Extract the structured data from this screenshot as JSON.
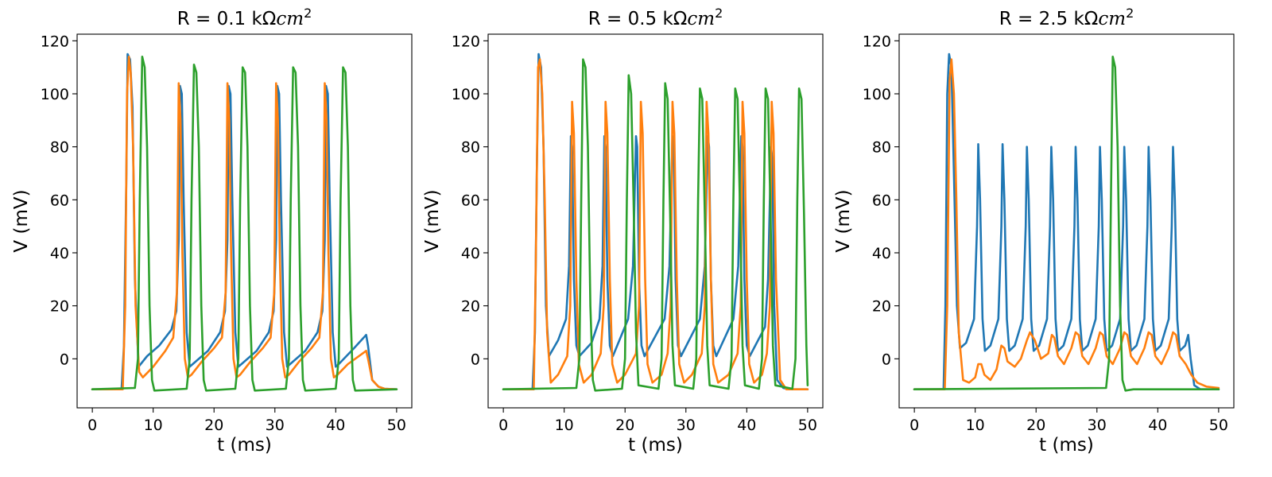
{
  "colors": {
    "blue": "#1f77b4",
    "orange": "#ff7f0e",
    "green": "#2ca02c"
  },
  "chart_data": [
    {
      "type": "line",
      "title_main": "R = 0.1 kΩ",
      "title_unit": "cm",
      "title_exp": "2",
      "xlabel": "t (ms)",
      "ylabel": "V (mV)",
      "xlim": [
        -2.5,
        52.5
      ],
      "ylim": [
        -18.5,
        122.5
      ],
      "xticks": [
        "0",
        "10",
        "20",
        "30",
        "40",
        "50"
      ],
      "yticks": [
        "0",
        "20",
        "40",
        "60",
        "80",
        "100",
        "120"
      ],
      "series": [
        {
          "name": "blue",
          "color": "#1f77b4",
          "x": [
            0,
            4.8,
            5.2,
            5.6,
            5.8,
            6.2,
            6.6,
            7.0,
            7.6,
            9,
            11,
            13,
            13.8,
            14.2,
            14.4,
            14.7,
            15.0,
            15.5,
            16.0,
            16.5,
            19,
            21,
            21.8,
            22.2,
            22.4,
            22.7,
            23.0,
            23.5,
            24.0,
            24.5,
            27,
            29,
            29.8,
            30.2,
            30.4,
            30.7,
            31.0,
            31.5,
            32.0,
            32.5,
            35,
            37,
            37.8,
            38.2,
            38.4,
            38.7,
            39.0,
            39.5,
            40.0,
            40.5,
            43,
            45.0,
            45.3,
            46,
            47,
            48,
            50
          ],
          "y": [
            -11.5,
            -11.5,
            5,
            70,
            115,
            113,
            95,
            30,
            -3,
            1,
            5,
            11,
            18,
            45,
            103,
            100,
            60,
            10,
            -3,
            -2,
            3,
            10,
            18,
            45,
            103,
            100,
            60,
            10,
            -3,
            -2,
            3,
            10,
            18,
            45,
            103,
            100,
            60,
            10,
            -3,
            -2,
            3,
            10,
            18,
            45,
            103,
            100,
            60,
            10,
            -3,
            -2,
            4,
            9,
            5,
            -8,
            -10.5,
            -11.3,
            -11.5
          ]
        },
        {
          "name": "orange",
          "color": "#ff7f0e",
          "x": [
            0,
            5.0,
            5.4,
            5.7,
            6.0,
            6.3,
            6.7,
            7.1,
            7.7,
            8.3,
            10,
            12,
            13.3,
            13.9,
            14.2,
            14.5,
            14.8,
            15.2,
            15.7,
            16.3,
            18,
            20,
            21.3,
            21.9,
            22.2,
            22.5,
            22.8,
            23.2,
            23.7,
            24.3,
            26,
            28,
            29.3,
            29.9,
            30.2,
            30.5,
            30.8,
            31.2,
            31.7,
            32.3,
            34,
            36,
            37.3,
            37.9,
            38.2,
            38.5,
            38.8,
            39.2,
            39.7,
            40.3,
            42,
            45.0,
            45.3,
            46,
            47,
            48,
            50
          ],
          "y": [
            -11.5,
            -11.5,
            20,
            100,
            114,
            108,
            80,
            20,
            -5,
            -7,
            -3,
            3,
            8,
            25,
            104,
            90,
            40,
            0,
            -7,
            -6,
            -1,
            4,
            8,
            25,
            104,
            90,
            40,
            0,
            -7,
            -6,
            -1,
            4,
            8,
            25,
            104,
            90,
            40,
            0,
            -7,
            -6,
            -1,
            4,
            8,
            25,
            104,
            90,
            40,
            0,
            -7,
            -6,
            -2,
            3,
            0,
            -8,
            -10.5,
            -11.3,
            -11.5
          ]
        },
        {
          "name": "green",
          "color": "#2ca02c",
          "x": [
            0,
            7.0,
            7.5,
            7.8,
            8.2,
            8.6,
            9.0,
            9.4,
            9.8,
            10.2,
            15.5,
            16.0,
            16.3,
            16.7,
            17.1,
            17.5,
            17.9,
            18.3,
            18.7,
            23.5,
            24.0,
            24.3,
            24.7,
            25.1,
            25.5,
            25.9,
            26.3,
            26.7,
            31.8,
            32.3,
            32.6,
            33.0,
            33.4,
            33.8,
            34.2,
            34.6,
            35.0,
            40.0,
            40.5,
            40.8,
            41.2,
            41.6,
            42.0,
            42.4,
            42.8,
            43.2,
            50
          ],
          "y": [
            -11.5,
            -11.0,
            0,
            60,
            114,
            110,
            80,
            20,
            -8,
            -12,
            -11.3,
            0,
            60,
            111,
            108,
            80,
            20,
            -8,
            -12,
            -11.3,
            0,
            60,
            110,
            108,
            80,
            20,
            -8,
            -12,
            -11.3,
            0,
            60,
            110,
            108,
            80,
            20,
            -8,
            -12,
            -11.3,
            0,
            60,
            110,
            108,
            80,
            20,
            -8,
            -12,
            -11.5
          ]
        }
      ]
    },
    {
      "type": "line",
      "title_main": "R = 0.5 kΩ",
      "title_unit": "cm",
      "title_exp": "2",
      "xlabel": "t (ms)",
      "ylabel": "V (mV)",
      "xlim": [
        -2.5,
        52.5
      ],
      "ylim": [
        -18.5,
        122.5
      ],
      "xticks": [
        "0",
        "10",
        "20",
        "30",
        "40",
        "50"
      ],
      "yticks": [
        "0",
        "20",
        "40",
        "60",
        "80",
        "100",
        "120"
      ],
      "series": [
        {
          "name": "blue",
          "color": "#1f77b4",
          "x": [
            0,
            4.8,
            5.2,
            5.5,
            5.8,
            6.2,
            6.6,
            7.0,
            7.5,
            9,
            10.3,
            10.8,
            11.1,
            11.3,
            11.6,
            12.0,
            12.5,
            14.5,
            15.8,
            16.3,
            16.6,
            16.8,
            17.1,
            17.5,
            18.0,
            20.5,
            21.3,
            21.8,
            22.0,
            22.3,
            22.7,
            23.2,
            26.5,
            27.3,
            27.8,
            28.0,
            28.3,
            28.7,
            29.2,
            32.3,
            33.1,
            33.6,
            33.8,
            34.1,
            34.5,
            35.0,
            37.8,
            38.6,
            39.1,
            39.3,
            39.6,
            40.0,
            40.5,
            43.0,
            43.5,
            44.0,
            44.2,
            44.5,
            45.0,
            46,
            47,
            50
          ],
          "y": [
            -11.5,
            -11.5,
            10,
            70,
            115,
            110,
            80,
            20,
            1,
            7,
            15,
            35,
            84,
            80,
            30,
            5,
            1,
            6,
            15,
            35,
            84,
            80,
            30,
            5,
            1,
            15,
            35,
            84,
            80,
            30,
            5,
            1,
            15,
            35,
            84,
            80,
            30,
            5,
            1,
            15,
            35,
            84,
            80,
            30,
            5,
            1,
            15,
            35,
            84,
            80,
            30,
            5,
            1,
            12,
            30,
            80,
            75,
            20,
            -8,
            -11,
            -11.5,
            -11.5
          ]
        },
        {
          "name": "orange",
          "color": "#ff7f0e",
          "x": [
            0,
            5.0,
            5.3,
            5.7,
            6.0,
            6.4,
            6.8,
            7.2,
            7.8,
            9,
            10.5,
            11.0,
            11.3,
            11.6,
            12.0,
            12.4,
            13.2,
            14.5,
            16.0,
            16.5,
            16.8,
            17.1,
            17.5,
            17.9,
            18.7,
            20,
            21.8,
            22.3,
            22.6,
            22.9,
            23.3,
            23.7,
            24.5,
            26,
            27.0,
            27.5,
            27.8,
            28.1,
            28.5,
            28.9,
            29.7,
            31,
            32.6,
            33.1,
            33.4,
            33.7,
            34.1,
            34.5,
            35.3,
            37,
            38.5,
            39.0,
            39.3,
            39.6,
            40.0,
            40.4,
            41.2,
            42.5,
            43.3,
            43.8,
            44.1,
            44.4,
            44.8,
            45.5,
            46.5,
            50
          ],
          "y": [
            -11.5,
            -11.5,
            30,
            110,
            113,
            100,
            60,
            10,
            -9,
            -6,
            1,
            20,
            97,
            85,
            30,
            -2,
            -9,
            -6,
            2,
            20,
            97,
            85,
            30,
            -2,
            -9,
            -6,
            2,
            20,
            97,
            85,
            30,
            -2,
            -9,
            -6,
            2,
            20,
            97,
            85,
            30,
            -2,
            -9,
            -6,
            2,
            20,
            97,
            85,
            30,
            -2,
            -9,
            -6,
            2,
            20,
            97,
            85,
            30,
            -2,
            -9,
            -6,
            2,
            20,
            97,
            85,
            30,
            -8,
            -11.5,
            -11.5
          ]
        },
        {
          "name": "green",
          "color": "#2ca02c",
          "x": [
            0,
            12.0,
            12.5,
            12.8,
            13.1,
            13.5,
            13.9,
            14.3,
            14.7,
            15.1,
            19.5,
            20.0,
            20.3,
            20.6,
            21.0,
            21.4,
            21.8,
            22.2,
            25.5,
            26.0,
            26.3,
            26.6,
            27.0,
            27.4,
            27.8,
            28.2,
            31.2,
            31.7,
            32.0,
            32.3,
            32.7,
            33.1,
            33.5,
            33.9,
            37.0,
            37.5,
            37.8,
            38.1,
            38.5,
            38.9,
            39.3,
            39.7,
            42.0,
            42.5,
            42.8,
            43.1,
            43.5,
            43.9,
            44.3,
            44.7,
            47.5,
            48.0,
            48.3,
            48.6,
            49.0,
            49.4,
            49.8,
            50
          ],
          "y": [
            -11.5,
            -11.0,
            0,
            60,
            113,
            110,
            80,
            20,
            -8,
            -12,
            -11.3,
            0,
            60,
            107,
            100,
            60,
            10,
            -10,
            -11.3,
            0,
            60,
            104,
            98,
            55,
            5,
            -10,
            -11.3,
            0,
            60,
            102,
            98,
            55,
            5,
            -10,
            -11.3,
            0,
            60,
            102,
            98,
            55,
            5,
            -10,
            -11.3,
            0,
            60,
            102,
            98,
            55,
            5,
            -10,
            -11.3,
            0,
            60,
            102,
            98,
            55,
            5,
            -10
          ]
        }
      ]
    },
    {
      "type": "line",
      "title_main": "R = 2.5 kΩ",
      "title_unit": "cm",
      "title_exp": "2",
      "xlabel": "t (ms)",
      "ylabel": "V (mV)",
      "xlim": [
        -2.5,
        52.5
      ],
      "ylim": [
        -18.5,
        122.5
      ],
      "xticks": [
        "0",
        "10",
        "20",
        "30",
        "40",
        "50"
      ],
      "yticks": [
        "0",
        "20",
        "40",
        "60",
        "80",
        "100",
        "120"
      ],
      "series": [
        {
          "name": "blue",
          "color": "#1f77b4",
          "x": [
            0,
            4.8,
            5.1,
            5.4,
            5.7,
            6.1,
            6.5,
            7.0,
            7.5,
            8.5,
            9.8,
            10.3,
            10.5,
            10.8,
            11.2,
            11.6,
            12.5,
            13.8,
            14.3,
            14.5,
            14.8,
            15.2,
            15.6,
            16.5,
            17.8,
            18.3,
            18.5,
            18.8,
            19.2,
            19.6,
            20.5,
            21.8,
            22.3,
            22.5,
            22.8,
            23.2,
            23.6,
            24.5,
            25.8,
            26.3,
            26.5,
            26.8,
            27.2,
            27.6,
            28.5,
            29.8,
            30.3,
            30.5,
            30.8,
            31.2,
            31.6,
            32.5,
            33.8,
            34.3,
            34.5,
            34.8,
            35.2,
            35.6,
            36.5,
            37.8,
            38.3,
            38.5,
            38.8,
            39.2,
            39.6,
            40.5,
            41.8,
            42.3,
            42.5,
            42.8,
            43.2,
            43.6,
            44.5,
            45.0,
            45.4,
            46,
            47,
            50
          ],
          "y": [
            -11.5,
            -11.5,
            20,
            100,
            115,
            110,
            70,
            20,
            4,
            6,
            15,
            50,
            81,
            60,
            15,
            3,
            5,
            15,
            50,
            81,
            60,
            15,
            3,
            5,
            15,
            50,
            80,
            60,
            15,
            3,
            5,
            15,
            50,
            80,
            60,
            15,
            3,
            5,
            15,
            50,
            80,
            60,
            15,
            3,
            5,
            15,
            50,
            80,
            60,
            15,
            3,
            5,
            15,
            50,
            80,
            60,
            15,
            3,
            5,
            15,
            50,
            80,
            60,
            15,
            3,
            5,
            15,
            50,
            80,
            60,
            15,
            3,
            5,
            9,
            0,
            -10,
            -11.5,
            -11.5
          ]
        },
        {
          "name": "orange",
          "color": "#ff7f0e",
          "x": [
            0,
            5.0,
            5.4,
            5.8,
            6.1,
            6.5,
            6.9,
            7.3,
            8,
            9,
            10,
            10.5,
            11.0,
            11.5,
            12.5,
            13.5,
            14.3,
            14.8,
            15.3,
            16.5,
            17.5,
            18.5,
            19.0,
            19.8,
            20.8,
            22.0,
            22.6,
            23.0,
            23.6,
            24.6,
            25.8,
            26.5,
            27.0,
            27.6,
            28.6,
            29.8,
            30.5,
            31.0,
            31.6,
            32.6,
            33.8,
            34.5,
            35.0,
            35.6,
            36.6,
            37.8,
            38.5,
            39.0,
            39.6,
            40.6,
            41.8,
            42.5,
            43.0,
            43.6,
            44.6,
            45.5,
            46.5,
            48,
            50
          ],
          "y": [
            -11.5,
            -11.5,
            20,
            105,
            113,
            100,
            60,
            10,
            -8,
            -9,
            -7,
            -2,
            -2,
            -6,
            -8,
            -4,
            5,
            4,
            -1,
            -3,
            0,
            7,
            10,
            7,
            0,
            2,
            9,
            8,
            1,
            -2,
            4,
            10,
            9,
            1,
            -2,
            4,
            10,
            9,
            1,
            -2,
            4,
            10,
            9,
            1,
            -2,
            4,
            10,
            9,
            1,
            -2,
            4,
            10,
            9,
            1,
            -2,
            -6,
            -9,
            -10.5,
            -11
          ]
        },
        {
          "name": "green",
          "color": "#2ca02c",
          "x": [
            0,
            31.5,
            32.0,
            32.3,
            32.6,
            33.0,
            33.4,
            33.8,
            34.2,
            34.7,
            36,
            50
          ],
          "y": [
            -11.5,
            -11.0,
            0,
            60,
            114,
            110,
            80,
            20,
            -8,
            -12,
            -11.5,
            -11.5
          ]
        }
      ]
    }
  ]
}
